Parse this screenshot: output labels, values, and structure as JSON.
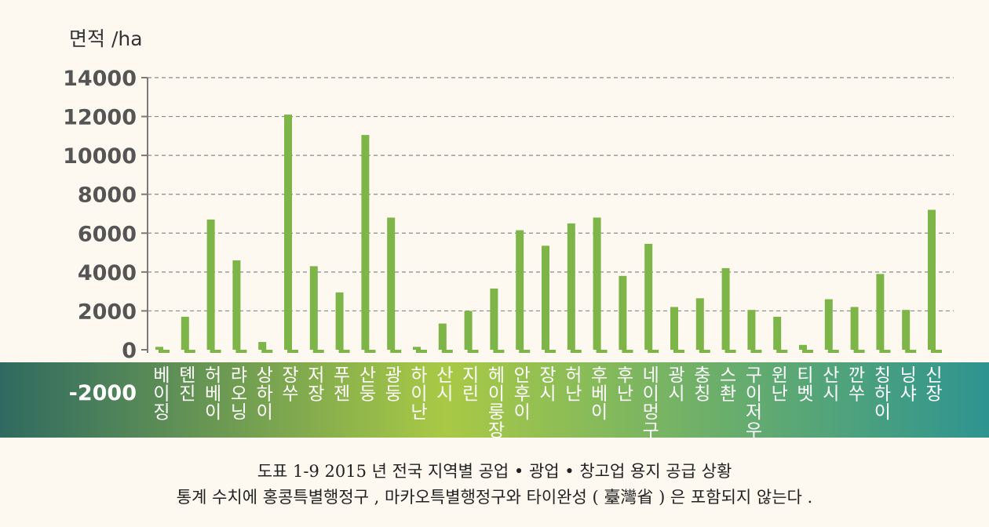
{
  "chart_data": {
    "type": "bar",
    "ylabel": "면적 /ha",
    "ylim": [
      -2000,
      14000
    ],
    "yticks": [
      -2000,
      0,
      2000,
      4000,
      6000,
      8000,
      10000,
      12000,
      14000
    ],
    "grid": true,
    "bar_color": "#7db548",
    "band_colors": [
      "#2f6a60",
      "#a9c945",
      "#2e9490"
    ],
    "categories": [
      "베이징",
      "톈진",
      "허베이",
      "랴오닝",
      "상하이",
      "장쑤",
      "저장",
      "푸젠",
      "산둥",
      "광둥",
      "하이난",
      "산시",
      "지린",
      "헤이룽장",
      "안후이",
      "장시",
      "허난",
      "후베이",
      "후난",
      "네이멍구",
      "광시",
      "충칭",
      "스촨",
      "구이저우",
      "윈난",
      "티벳",
      "산시",
      "깐쑤",
      "칭하이",
      "닝샤",
      "신장"
    ],
    "values": [
      150,
      1700,
      6700,
      4600,
      400,
      12100,
      4300,
      2950,
      11050,
      6800,
      150,
      1350,
      2000,
      3150,
      6150,
      5350,
      6500,
      6800,
      3800,
      5450,
      2200,
      2650,
      4200,
      2050,
      1700,
      250,
      2600,
      2200,
      3900,
      2050,
      7200
    ]
  },
  "caption": {
    "title": "도표 1-9 2015 년 전국 지역별 공업 • 광업 • 창고업 용지 공급 상황",
    "note": "통계 수치에 홍콩특별행정구 , 마카오특별행정구와 타이완성 ( 臺灣省 ) 은 포함되지 않는다 ."
  }
}
